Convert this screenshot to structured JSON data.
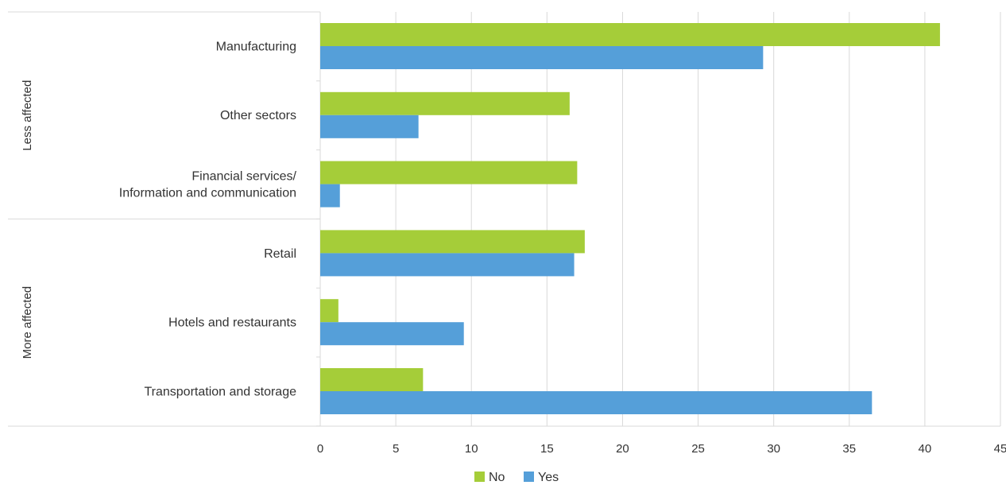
{
  "chart_data": {
    "type": "bar",
    "orientation": "horizontal",
    "title": "",
    "xlabel": "",
    "ylabel": "",
    "xlim": [
      0,
      45
    ],
    "x_ticks": [
      0,
      5,
      10,
      15,
      20,
      25,
      30,
      35,
      40,
      45
    ],
    "grid": "vertical",
    "legend_position": "bottom-center",
    "groups": [
      {
        "label": "Less affected",
        "categories": [
          "Manufacturing",
          "Other sectors",
          "Financial services/ Information and communication"
        ]
      },
      {
        "label": "More affected",
        "categories": [
          "Retail",
          "Hotels and restaurants",
          "Transportation and storage"
        ]
      }
    ],
    "categories": [
      {
        "lines": [
          "Manufacturing"
        ]
      },
      {
        "lines": [
          "Other sectors"
        ]
      },
      {
        "lines": [
          "Financial services/",
          "Information and communication"
        ]
      },
      {
        "lines": [
          "Retail"
        ]
      },
      {
        "lines": [
          "Hotels and restaurants"
        ]
      },
      {
        "lines": [
          "Transportation and storage"
        ]
      }
    ],
    "series": [
      {
        "name": "No",
        "color": "#a5cd39",
        "values": [
          41.0,
          16.5,
          17.0,
          17.5,
          1.2,
          6.8
        ]
      },
      {
        "name": "Yes",
        "color": "#559fd9",
        "values": [
          29.3,
          6.5,
          1.3,
          16.8,
          9.5,
          36.5
        ]
      }
    ]
  }
}
